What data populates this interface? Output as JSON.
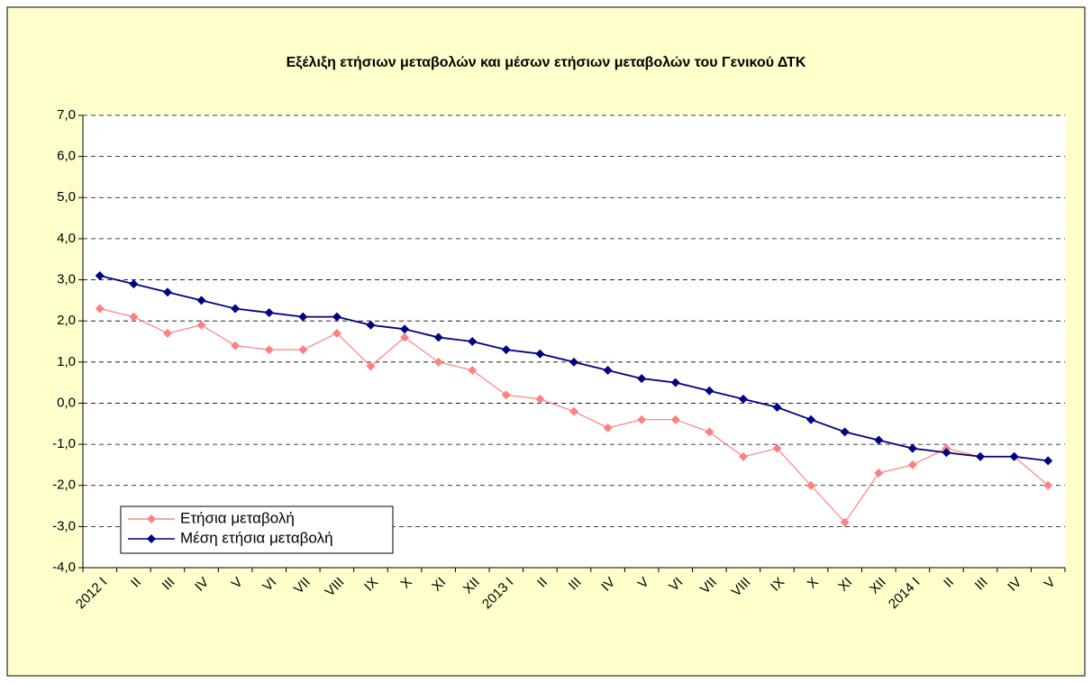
{
  "chart_data": {
    "type": "line",
    "title": "Εξέλιξη ετήσιων μεταβολών και μέσων ετήσιων μεταβολών του Γενικού ΔΤΚ",
    "categories": [
      "2012 I",
      "II",
      "III",
      "IV",
      "V",
      "VI",
      "VII",
      "VIII",
      "IX",
      "X",
      "XI",
      "XII",
      "2013 I",
      "II",
      "III",
      "IV",
      "V",
      "VI",
      "VII",
      "VIII",
      "IX",
      "X",
      "XI",
      "XII",
      "2014 I",
      "II",
      "III",
      "IV",
      "V"
    ],
    "series": [
      {
        "name": "Ετήσια μεταβολή",
        "color": "#ff8080",
        "values": [
          2.3,
          2.1,
          1.7,
          1.9,
          1.4,
          1.3,
          1.3,
          1.7,
          0.9,
          1.6,
          1.0,
          0.8,
          0.2,
          0.1,
          -0.2,
          -0.6,
          -0.4,
          -0.4,
          -0.7,
          -1.3,
          -1.1,
          -2.0,
          -2.9,
          -1.7,
          -1.5,
          -1.1,
          -1.3,
          -1.3,
          -2.0
        ]
      },
      {
        "name": "Μέση ετήσια μεταβολή",
        "color": "#000080",
        "values": [
          3.1,
          2.9,
          2.7,
          2.5,
          2.3,
          2.2,
          2.1,
          2.1,
          1.9,
          1.8,
          1.6,
          1.5,
          1.3,
          1.2,
          1.0,
          0.8,
          0.6,
          0.5,
          0.3,
          0.1,
          -0.1,
          -0.4,
          -0.7,
          -0.9,
          -1.1,
          -1.2,
          -1.3,
          -1.3,
          -1.4
        ]
      }
    ],
    "ylim": [
      -4,
      7
    ],
    "yticks": [
      {
        "value": -4,
        "label": "-4,0"
      },
      {
        "value": -3,
        "label": "-3,0"
      },
      {
        "value": -2,
        "label": "-2,0"
      },
      {
        "value": -1,
        "label": "-1,0"
      },
      {
        "value": 0,
        "label": "0,0"
      },
      {
        "value": 1,
        "label": "1,0"
      },
      {
        "value": 2,
        "label": "2,0"
      },
      {
        "value": 3,
        "label": "3,0"
      },
      {
        "value": 4,
        "label": "4,0"
      },
      {
        "value": 5,
        "label": "5,0"
      },
      {
        "value": 6,
        "label": "6,0"
      },
      {
        "value": 7,
        "label": "7,0"
      }
    ],
    "grid": true,
    "legend": "lower-left"
  }
}
